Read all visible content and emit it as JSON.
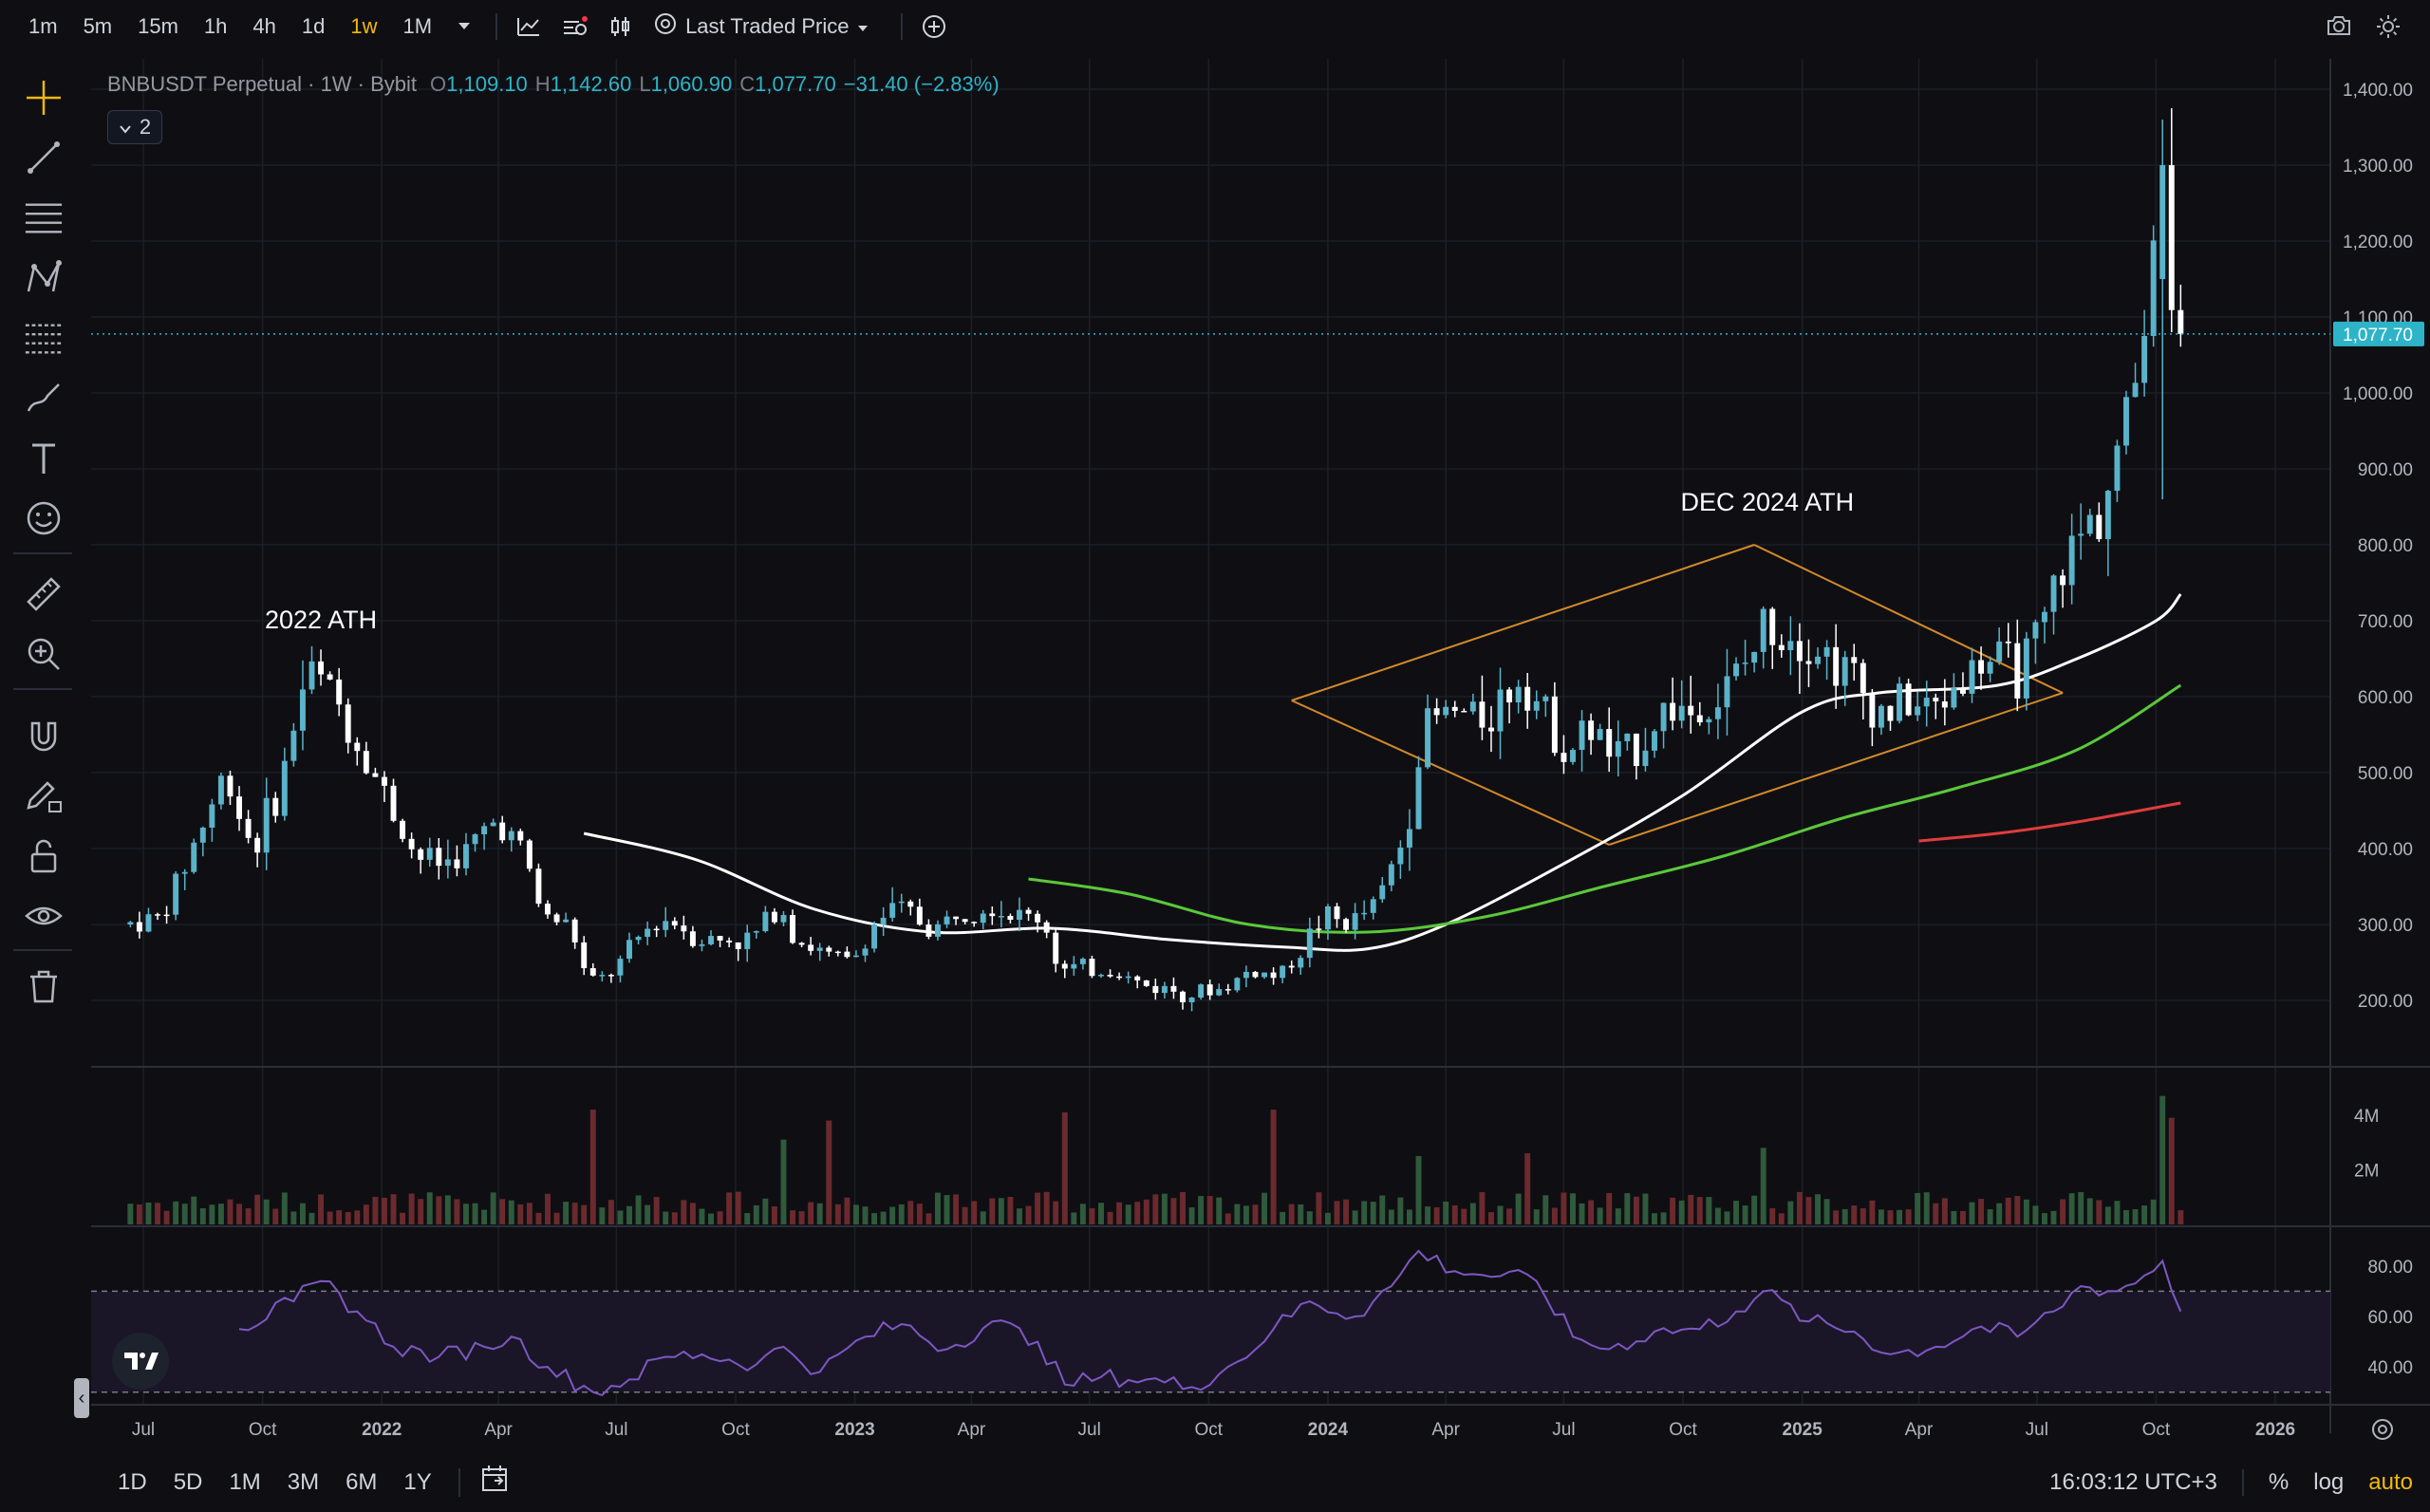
{
  "toolbar": {
    "timeframes": [
      {
        "label": "1m",
        "active": false
      },
      {
        "label": "5m",
        "active": false
      },
      {
        "label": "15m",
        "active": false
      },
      {
        "label": "1h",
        "active": false
      },
      {
        "label": "4h",
        "active": false
      },
      {
        "label": "1d",
        "active": false
      },
      {
        "label": "1w",
        "active": true
      },
      {
        "label": "1M",
        "active": false
      }
    ],
    "price_source": "Last Traded Price",
    "icons": [
      "chevron-down-icon",
      "indicators-icon",
      "alert-icon",
      "bar-style-icon",
      "settings-icon",
      "add-icon",
      "camera-icon",
      "settings-icon"
    ]
  },
  "left_toolbar": {
    "icons": [
      "crosshair-icon",
      "trendline-icon",
      "horizontal-lines-icon",
      "pattern-icon",
      "fib-icon",
      "brush-icon",
      "text-icon",
      "emoji-icon",
      "ruler-icon",
      "zoom-icon",
      "magnet-icon",
      "pencil-lock-icon",
      "lock-icon",
      "eye-icon",
      "trash-icon"
    ]
  },
  "legend": {
    "symbol": "BNBUSDT Perpetual · 1W · Bybit",
    "open_label": "O",
    "open": "1,109.10",
    "high_label": "H",
    "high": "1,142.60",
    "low_label": "L",
    "low": "1,060.90",
    "close_label": "C",
    "close": "1,077.70",
    "change": "−31.40 (−2.83%)",
    "indicator_count": "2"
  },
  "colors": {
    "accent": "#f0b90b",
    "up": "#5ab3c9",
    "down": "#ffffff",
    "ma_white": "#ffffff",
    "ma_green": "#5ac83a",
    "ma_red": "#e03c3c",
    "rsi": "#7e57c2",
    "pattern": "#d48a2a"
  },
  "chart_data": {
    "type": "candlestick",
    "x_labels": [
      "Jul",
      "Oct",
      "2022",
      "Apr",
      "Jul",
      "Oct",
      "2023",
      "Apr",
      "Jul",
      "Oct",
      "2024",
      "Apr",
      "Jul",
      "Oct",
      "2025",
      "Apr",
      "Jul",
      "Oct",
      "2026"
    ],
    "x_tick_dates": [
      "2021-07-01",
      "2021-10-01",
      "2022-01-01",
      "2022-04-01",
      "2022-07-01",
      "2022-10-01",
      "2023-01-01",
      "2023-04-01",
      "2023-07-01",
      "2023-10-01",
      "2024-01-01",
      "2024-04-01",
      "2024-07-01",
      "2024-10-01",
      "2025-01-01",
      "2025-04-01",
      "2025-07-01",
      "2025-10-01",
      "2026-01-01"
    ],
    "y_labels": [
      "1,400.00",
      "1,300.00",
      "1,200.00",
      "1,100.00",
      "1,000.00",
      "900.00",
      "800.00",
      "700.00",
      "600.00",
      "500.00",
      "400.00",
      "300.00",
      "200.00"
    ],
    "ylim": [
      100,
      1430
    ],
    "last_price_label": "1,077.70",
    "last_price": 1077.7,
    "annotations": [
      {
        "text": "2022 ATH",
        "date": "2021-11-15",
        "price": 690
      },
      {
        "text": "DEC 2024 ATH",
        "date": "2024-12-05",
        "price": 845
      }
    ],
    "price_points": [
      [
        "2021-06-21",
        300
      ],
      [
        "2021-07-19",
        310
      ],
      [
        "2021-08-16",
        420
      ],
      [
        "2021-09-06",
        500
      ],
      [
        "2021-09-27",
        400
      ],
      [
        "2021-10-18",
        480
      ],
      [
        "2021-11-08",
        640
      ],
      [
        "2021-11-29",
        600
      ],
      [
        "2021-12-20",
        530
      ],
      [
        "2022-01-10",
        460
      ],
      [
        "2022-01-31",
        390
      ],
      [
        "2022-02-21",
        380
      ],
      [
        "2022-03-14",
        400
      ],
      [
        "2022-04-04",
        440
      ],
      [
        "2022-04-25",
        390
      ],
      [
        "2022-05-09",
        310
      ],
      [
        "2022-05-30",
        300
      ],
      [
        "2022-06-13",
        220
      ],
      [
        "2022-07-04",
        240
      ],
      [
        "2022-07-25",
        290
      ],
      [
        "2022-08-15",
        310
      ],
      [
        "2022-09-05",
        280
      ],
      [
        "2022-09-26",
        280
      ],
      [
        "2022-10-17",
        280
      ],
      [
        "2022-11-07",
        330
      ],
      [
        "2022-11-21",
        280
      ],
      [
        "2022-12-12",
        260
      ],
      [
        "2023-01-02",
        250
      ],
      [
        "2023-01-23",
        310
      ],
      [
        "2023-02-13",
        320
      ],
      [
        "2023-03-06",
        290
      ],
      [
        "2023-03-27",
        320
      ],
      [
        "2023-04-17",
        330
      ],
      [
        "2023-05-08",
        310
      ],
      [
        "2023-05-29",
        310
      ],
      [
        "2023-06-12",
        240
      ],
      [
        "2023-07-03",
        240
      ],
      [
        "2023-07-24",
        240
      ],
      [
        "2023-08-14",
        220
      ],
      [
        "2023-09-04",
        215
      ],
      [
        "2023-09-25",
        210
      ],
      [
        "2023-10-16",
        215
      ],
      [
        "2023-11-06",
        240
      ],
      [
        "2023-11-27",
        230
      ],
      [
        "2023-12-11",
        260
      ],
      [
        "2024-01-01",
        310
      ],
      [
        "2024-01-22",
        300
      ],
      [
        "2024-02-12",
        330
      ],
      [
        "2024-03-04",
        420
      ],
      [
        "2024-03-18",
        560
      ],
      [
        "2024-04-08",
        580
      ],
      [
        "2024-04-29",
        570
      ],
      [
        "2024-05-20",
        600
      ],
      [
        "2024-06-03",
        640
      ],
      [
        "2024-06-17",
        580
      ],
      [
        "2024-07-08",
        530
      ],
      [
        "2024-07-29",
        560
      ],
      [
        "2024-08-12",
        510
      ],
      [
        "2024-09-02",
        540
      ],
      [
        "2024-09-23",
        590
      ],
      [
        "2024-10-14",
        580
      ],
      [
        "2024-11-04",
        600
      ],
      [
        "2024-11-25",
        650
      ],
      [
        "2024-12-09",
        700
      ],
      [
        "2024-12-30",
        690
      ],
      [
        "2025-01-20",
        660
      ],
      [
        "2025-02-10",
        630
      ],
      [
        "2025-03-03",
        580
      ],
      [
        "2025-03-24",
        590
      ],
      [
        "2025-04-14",
        580
      ],
      [
        "2025-05-05",
        620
      ],
      [
        "2025-05-26",
        650
      ],
      [
        "2025-06-16",
        630
      ],
      [
        "2025-07-07",
        670
      ],
      [
        "2025-07-21",
        760
      ],
      [
        "2025-08-04",
        800
      ],
      [
        "2025-08-25",
        860
      ],
      [
        "2025-09-15",
        980
      ],
      [
        "2025-09-29",
        1150
      ],
      [
        "2025-10-06",
        1300
      ],
      [
        "2025-10-13",
        1109.1
      ],
      [
        "2025-10-20",
        1077.7
      ]
    ],
    "ma_white": [
      [
        "2022-06-06",
        420
      ],
      [
        "2022-09-01",
        385
      ],
      [
        "2022-12-01",
        320
      ],
      [
        "2023-03-01",
        290
      ],
      [
        "2023-06-01",
        295
      ],
      [
        "2023-09-01",
        280
      ],
      [
        "2023-12-01",
        270
      ],
      [
        "2024-02-01",
        268
      ],
      [
        "2024-04-01",
        300
      ],
      [
        "2024-07-01",
        380
      ],
      [
        "2024-10-01",
        470
      ],
      [
        "2025-01-01",
        580
      ],
      [
        "2025-03-01",
        605
      ],
      [
        "2025-06-01",
        615
      ],
      [
        "2025-08-01",
        650
      ],
      [
        "2025-10-01",
        700
      ],
      [
        "2025-10-20",
        735
      ]
    ],
    "ma_green": [
      [
        "2023-05-15",
        360
      ],
      [
        "2023-08-01",
        340
      ],
      [
        "2023-11-01",
        300
      ],
      [
        "2024-02-01",
        290
      ],
      [
        "2024-05-01",
        310
      ],
      [
        "2024-08-01",
        350
      ],
      [
        "2024-11-01",
        390
      ],
      [
        "2025-02-01",
        440
      ],
      [
        "2025-05-01",
        480
      ],
      [
        "2025-08-01",
        530
      ],
      [
        "2025-10-20",
        615
      ]
    ],
    "ma_red": [
      [
        "2025-04-01",
        410
      ],
      [
        "2025-06-01",
        420
      ],
      [
        "2025-08-01",
        435
      ],
      [
        "2025-10-20",
        460
      ]
    ],
    "volume_labels": [
      "4M",
      "2M"
    ],
    "volume_max": 5000000,
    "volume_spikes": [
      [
        "2022-06-13",
        4200000
      ],
      [
        "2022-11-07",
        3100000
      ],
      [
        "2022-12-12",
        3800000
      ],
      [
        "2023-06-12",
        4100000
      ],
      [
        "2023-11-20",
        4200000
      ],
      [
        "2024-03-11",
        2500000
      ],
      [
        "2024-06-03",
        2600000
      ],
      [
        "2024-12-02",
        2800000
      ],
      [
        "2025-10-06",
        4700000
      ],
      [
        "2025-10-13",
        3900000
      ]
    ],
    "rsi_labels": [
      "80.00",
      "60.00",
      "40.00"
    ],
    "rsi_levels": [
      70,
      30
    ],
    "rsi_range": [
      25,
      95
    ],
    "rsi_points": [
      [
        "2021-09-13",
        55
      ],
      [
        "2021-10-25",
        66
      ],
      [
        "2021-11-15",
        74
      ],
      [
        "2021-12-13",
        62
      ],
      [
        "2022-01-10",
        48
      ],
      [
        "2022-02-14",
        44
      ],
      [
        "2022-03-21",
        48
      ],
      [
        "2022-04-11",
        52
      ],
      [
        "2022-05-09",
        40
      ],
      [
        "2022-06-13",
        30
      ],
      [
        "2022-07-11",
        35
      ],
      [
        "2022-08-08",
        44
      ],
      [
        "2022-09-05",
        45
      ],
      [
        "2022-10-17",
        41
      ],
      [
        "2022-11-07",
        48
      ],
      [
        "2022-12-05",
        38
      ],
      [
        "2023-01-09",
        52
      ],
      [
        "2023-02-06",
        57
      ],
      [
        "2023-03-13",
        47
      ],
      [
        "2023-04-17",
        58
      ],
      [
        "2023-05-22",
        50
      ],
      [
        "2023-06-12",
        33
      ],
      [
        "2023-07-10",
        36
      ],
      [
        "2023-08-14",
        35
      ],
      [
        "2023-09-18",
        32
      ],
      [
        "2023-10-23",
        42
      ],
      [
        "2023-11-20",
        55
      ],
      [
        "2023-12-18",
        66
      ],
      [
        "2024-01-22",
        60
      ],
      [
        "2024-02-19",
        72
      ],
      [
        "2024-03-11",
        86
      ],
      [
        "2024-04-08",
        78
      ],
      [
        "2024-05-13",
        76
      ],
      [
        "2024-06-10",
        74
      ],
      [
        "2024-07-08",
        52
      ],
      [
        "2024-08-05",
        47
      ],
      [
        "2024-09-09",
        54
      ],
      [
        "2024-10-14",
        55
      ],
      [
        "2024-11-11",
        62
      ],
      [
        "2024-12-02",
        70
      ],
      [
        "2025-01-06",
        58
      ],
      [
        "2025-02-10",
        54
      ],
      [
        "2025-03-10",
        45
      ],
      [
        "2025-04-14",
        48
      ],
      [
        "2025-05-19",
        56
      ],
      [
        "2025-06-16",
        52
      ],
      [
        "2025-07-14",
        62
      ],
      [
        "2025-08-04",
        72
      ],
      [
        "2025-09-01",
        70
      ],
      [
        "2025-09-29",
        78
      ],
      [
        "2025-10-06",
        82
      ],
      [
        "2025-10-20",
        62
      ]
    ]
  },
  "bottom_bar": {
    "ranges": [
      "1D",
      "5D",
      "1M",
      "3M",
      "6M",
      "1Y"
    ],
    "clock": "16:03:12 UTC+3",
    "percent_label": "%",
    "log_label": "log",
    "auto_label": "auto"
  }
}
